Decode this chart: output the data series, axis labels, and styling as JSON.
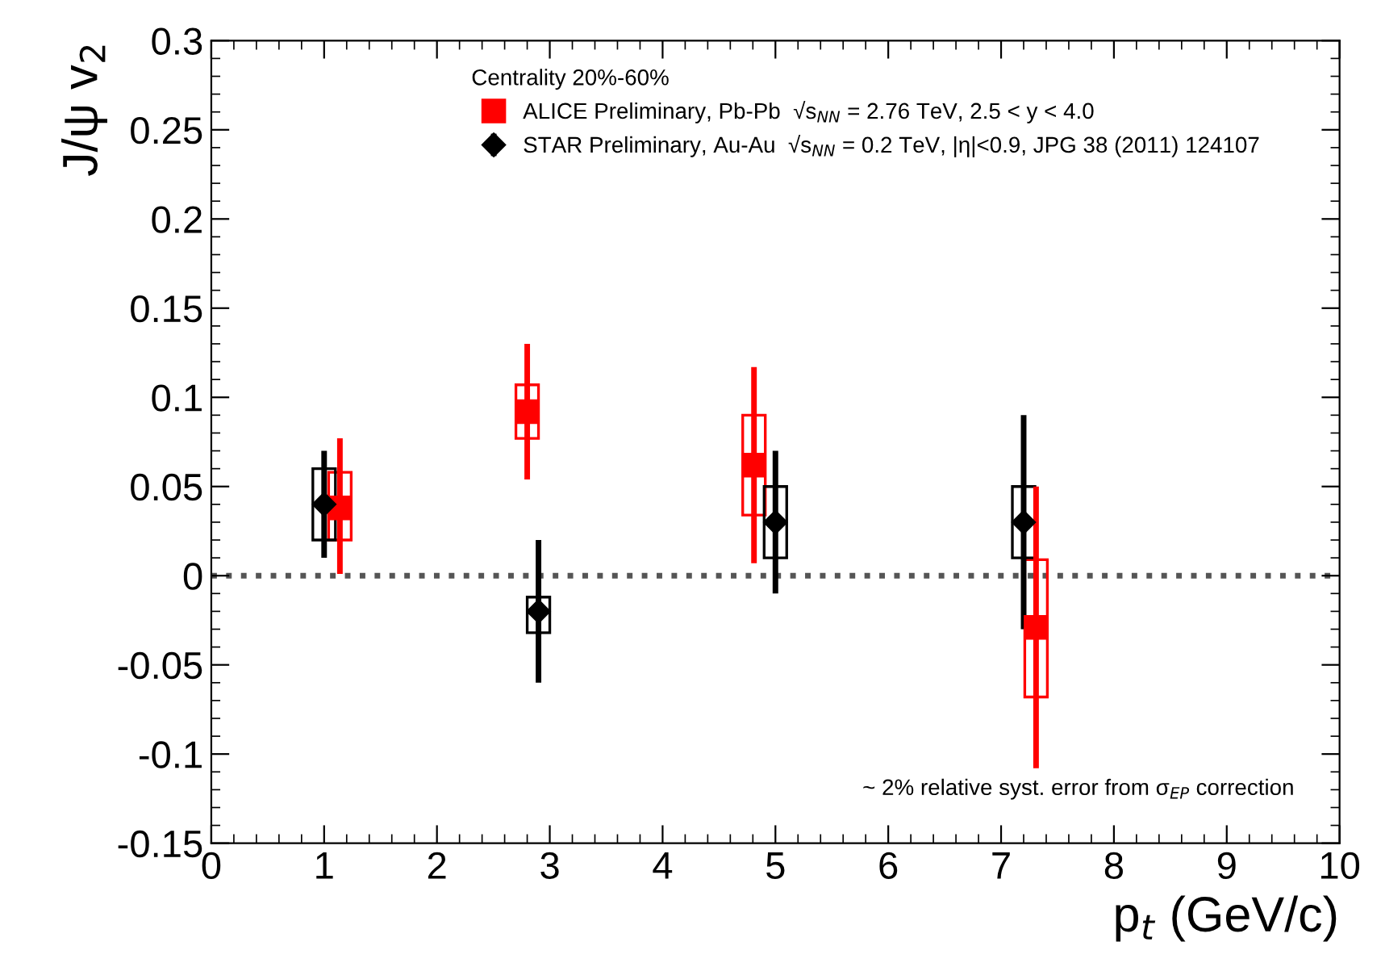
{
  "chart_data": {
    "type": "scatter",
    "xlabel": "p$_{t}$ (GeV/c)",
    "ylabel": "J/ψ v$_{2}$",
    "legend_title": "Centrality 20%-60%",
    "legend": "top",
    "xlim": [
      0,
      10
    ],
    "xticks": [
      0,
      1,
      2,
      3,
      4,
      5,
      6,
      7,
      8,
      9,
      10
    ],
    "ylim": [
      -0.15,
      0.3
    ],
    "yticks": [
      -0.15,
      -0.1,
      -0.05,
      0,
      0.05,
      0.1,
      0.15,
      0.2,
      0.25,
      0.3
    ],
    "grid": false,
    "ref_lines": [
      {
        "axis": "y",
        "value": 0,
        "line_style": "dotted",
        "color": "#555555"
      }
    ],
    "annotations": [
      "~ 2% relative syst. error from σ$_{EP}$ correction"
    ],
    "series": [
      {
        "name": "ALICE Preliminary, Pb-Pb  √s$_{NN}$ = 2.76 TeV, 2.5 < y < 4.0",
        "marker": "square",
        "color": "#ff0000",
        "x": [
          1.14,
          2.8,
          4.81,
          7.31
        ],
        "values": [
          0.038,
          0.092,
          0.062,
          -0.029
        ],
        "errors": [
          [
            0.001,
            0.077
          ],
          [
            0.054,
            0.13
          ],
          [
            0.007,
            0.117
          ],
          [
            -0.108,
            0.05
          ]
        ]
      },
      {
        "type": "bar",
        "color": "#ff0000",
        "x": [
          1.14,
          2.8,
          4.81,
          7.31
        ],
        "base": [
          0.02,
          0.077,
          0.034,
          -0.068
        ],
        "values": [
          0.038,
          0.03,
          0.056,
          0.077
        ]
      },
      {
        "name": "STAR Preliminary, Au-Au  √s$_{NN}$ = 0.2 TeV, |η|<0.9, JPG 38 (2011) 124107",
        "marker": "diamond",
        "color": "#000000",
        "x": [
          1.0,
          2.9,
          5.0,
          7.2
        ],
        "values": [
          0.04,
          -0.02,
          0.03,
          0.03
        ],
        "errors": [
          [
            0.01,
            0.07
          ],
          [
            -0.06,
            0.02
          ],
          [
            -0.01,
            0.07
          ],
          [
            -0.03,
            0.09
          ]
        ]
      },
      {
        "type": "bar",
        "color": "#000000",
        "x": [
          1.0,
          2.9,
          5.0,
          7.2
        ],
        "base": [
          0.02,
          -0.032,
          0.01,
          0.01
        ],
        "values": [
          0.04,
          0.02,
          0.04,
          0.04
        ]
      }
    ]
  }
}
